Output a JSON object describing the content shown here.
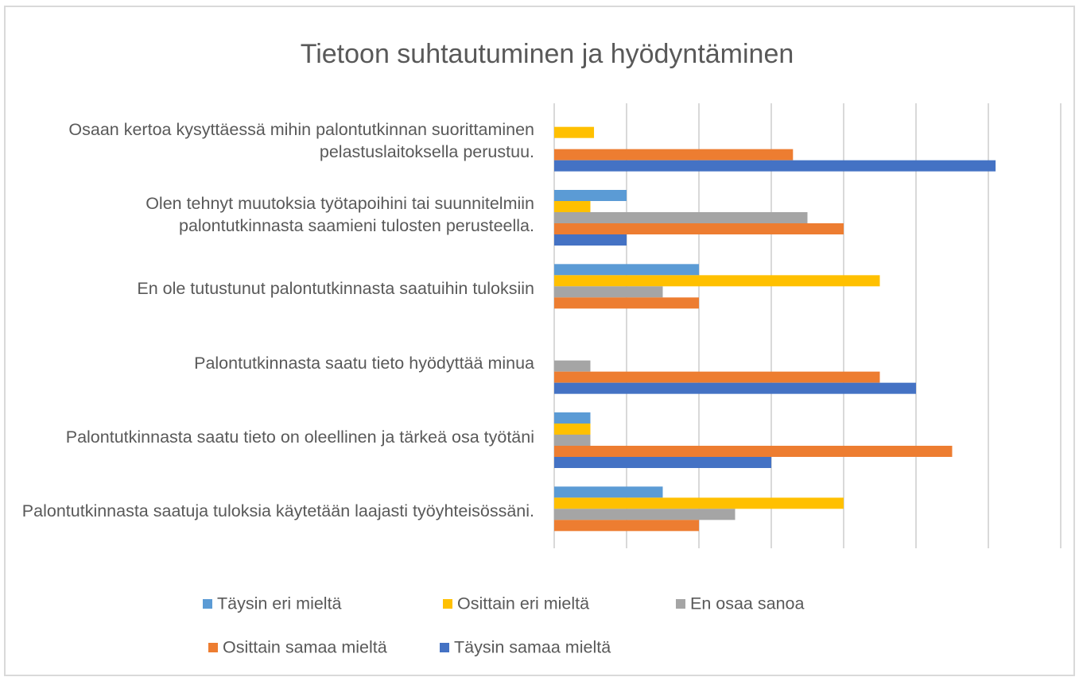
{
  "chart_data": {
    "type": "bar",
    "orientation": "horizontal",
    "title": "Tietoon suhtautuminen ja hyödyntäminen",
    "categories": [
      "Osaan kertoa kysyttäessä mihin palontutkinnan suorittaminen pelastuslaitoksella perustuu.",
      "Olen tehnyt muutoksia työtapoihini tai suunnitelmiin palontutkinnasta saamieni tulosten perusteella.",
      "En ole tutustunut palontutkinnasta saatuihin tuloksiin",
      "Palontutkinnasta saatu tieto hyödyttää minua",
      "Palontutkinnasta saatu tieto on oleellinen ja tärkeä osa työtäni",
      "Palontutkinnasta saatuja tuloksia käytetään laajasti työyhteisössäni."
    ],
    "series": [
      {
        "name": "Täysin eri mieltä",
        "color": "#5b9bd5",
        "values": [
          0,
          2,
          4,
          0,
          1,
          3
        ]
      },
      {
        "name": "Osittain eri mieltä",
        "color": "#ffc000",
        "values": [
          1.1,
          1,
          9,
          0,
          1,
          8
        ]
      },
      {
        "name": "En osaa sanoa",
        "color": "#a5a5a5",
        "values": [
          0,
          7,
          3,
          1,
          1,
          5
        ]
      },
      {
        "name": "Osittain samaa mieltä",
        "color": "#ed7d31",
        "values": [
          6.6,
          8,
          4,
          9,
          11,
          4
        ]
      },
      {
        "name": "Täysin samaa mieltä",
        "color": "#4472c4",
        "values": [
          12.2,
          2,
          0,
          10,
          6,
          0
        ]
      }
    ],
    "xlim": [
      0,
      14
    ],
    "xticks": [
      0,
      2,
      4,
      6,
      8,
      10,
      12,
      14
    ],
    "grid": true,
    "legend": "bottom"
  }
}
